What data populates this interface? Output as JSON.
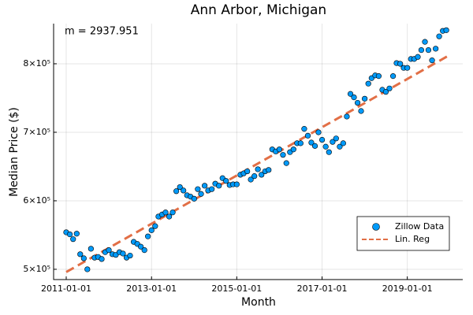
{
  "chart_data": {
    "type": "scatter",
    "title": "Ann Arbor, Michigan",
    "xlabel": "Month",
    "ylabel": "Median Price ($)",
    "annotation": "m = 2937.951",
    "xlim": [
      "2010-09-15",
      "2020-04-20"
    ],
    "xticks": [
      "2011-01-01",
      "2013-01-01",
      "2015-01-01",
      "2017-01-01",
      "2019-01-01"
    ],
    "ylim": [
      485000,
      858600
    ],
    "yticks": [
      {
        "value": 500000,
        "label": "5×10⁵"
      },
      {
        "value": 600000,
        "label": "6×10⁵"
      },
      {
        "value": 700000,
        "label": "7×10⁵"
      },
      {
        "value": 800000,
        "label": "8×10⁵"
      }
    ],
    "grid": true,
    "legend": "lower right",
    "series": [
      {
        "name": "Zillow Data",
        "color": "#009af9",
        "mode": "markers",
        "x": [
          "2011-01-01",
          "2011-02-01",
          "2011-03-01",
          "2011-04-01",
          "2011-05-01",
          "2011-06-01",
          "2011-07-01",
          "2011-08-01",
          "2011-09-01",
          "2011-10-01",
          "2011-11-01",
          "2011-12-01",
          "2012-01-01",
          "2012-02-01",
          "2012-03-01",
          "2012-04-01",
          "2012-05-01",
          "2012-06-01",
          "2012-07-01",
          "2012-08-01",
          "2012-09-01",
          "2012-10-01",
          "2012-11-01",
          "2012-12-01",
          "2013-01-01",
          "2013-02-01",
          "2013-03-01",
          "2013-04-01",
          "2013-05-01",
          "2013-06-01",
          "2013-07-01",
          "2013-08-01",
          "2013-09-01",
          "2013-10-01",
          "2013-11-01",
          "2013-12-01",
          "2014-01-01",
          "2014-02-01",
          "2014-03-01",
          "2014-04-01",
          "2014-05-01",
          "2014-06-01",
          "2014-07-01",
          "2014-08-01",
          "2014-09-01",
          "2014-10-01",
          "2014-11-01",
          "2014-12-01",
          "2015-01-01",
          "2015-02-01",
          "2015-03-01",
          "2015-04-01",
          "2015-05-01",
          "2015-06-01",
          "2015-07-01",
          "2015-08-01",
          "2015-09-01",
          "2015-10-01",
          "2015-11-01",
          "2015-12-01",
          "2016-01-01",
          "2016-02-01",
          "2016-03-01",
          "2016-04-01",
          "2016-05-01",
          "2016-06-01",
          "2016-07-01",
          "2016-08-01",
          "2016-09-01",
          "2016-10-01",
          "2016-11-01",
          "2016-12-01",
          "2017-01-01",
          "2017-02-01",
          "2017-03-01",
          "2017-04-01",
          "2017-05-01",
          "2017-06-01",
          "2017-07-01",
          "2017-08-01",
          "2017-09-01",
          "2017-10-01",
          "2017-11-01",
          "2017-12-01",
          "2018-01-01",
          "2018-02-01",
          "2018-03-01",
          "2018-04-01",
          "2018-05-01",
          "2018-06-01",
          "2018-07-01",
          "2018-08-01",
          "2018-09-01",
          "2018-10-01",
          "2018-11-01",
          "2018-12-01",
          "2019-01-01",
          "2019-02-01",
          "2019-03-01",
          "2019-04-01",
          "2019-05-01",
          "2019-06-01",
          "2019-07-01",
          "2019-08-01",
          "2019-09-01",
          "2019-10-01",
          "2019-11-01",
          "2019-12-01"
        ],
        "values": [
          554000,
          551000,
          544000,
          552000,
          522000,
          516000,
          500000,
          530000,
          517000,
          518000,
          515000,
          525000,
          528000,
          522000,
          521000,
          525000,
          523000,
          517000,
          520000,
          540000,
          537000,
          533000,
          528000,
          548000,
          557000,
          563000,
          577000,
          580000,
          583000,
          577000,
          583000,
          614000,
          620000,
          615000,
          608000,
          606000,
          603000,
          617000,
          610000,
          622000,
          615000,
          617000,
          625000,
          622000,
          633000,
          629000,
          623000,
          624000,
          624000,
          638000,
          640000,
          643000,
          631000,
          636000,
          646000,
          638000,
          643000,
          645000,
          675000,
          672000,
          675000,
          667000,
          655000,
          671000,
          675000,
          684000,
          684000,
          705000,
          695000,
          685000,
          680000,
          700000,
          689000,
          679000,
          671000,
          686000,
          691000,
          679000,
          684000,
          723000,
          756000,
          751000,
          743000,
          731000,
          749000,
          771000,
          779000,
          783000,
          782000,
          762000,
          759000,
          764000,
          782000,
          801000,
          800000,
          794000,
          794000,
          807000,
          807000,
          810000,
          820000,
          832000,
          820000,
          805000,
          822000,
          840000,
          848000,
          849000
        ]
      },
      {
        "name": "Lin. Reg",
        "color": "#e26f46",
        "mode": "dashed-line",
        "x": [
          "2011-01-01",
          "2020-01-01"
        ],
        "values": [
          496000,
          813000
        ]
      }
    ]
  }
}
